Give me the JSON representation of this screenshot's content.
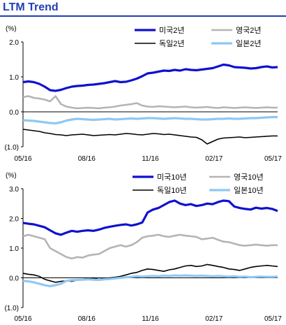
{
  "title": "LTM Trend",
  "chart_data": [
    {
      "type": "line",
      "unit_label": "(%)",
      "ylim": [
        -1.0,
        2.0
      ],
      "yticks": [
        "2.0",
        "1.0",
        "0.0",
        "(1.0)"
      ],
      "ytick_values": [
        2.0,
        1.0,
        0.0,
        -1.0
      ],
      "xticks": [
        "05/16",
        "08/16",
        "11/16",
        "02/17",
        "05/17"
      ],
      "x_range": [
        "2016-05",
        "2017-05"
      ],
      "grid": false,
      "legend": "top-right",
      "series": [
        {
          "name": "미국2년",
          "color": "#1010d0",
          "width": 3.2,
          "values": [
            0.85,
            0.87,
            0.85,
            0.8,
            0.72,
            0.62,
            0.6,
            0.63,
            0.68,
            0.72,
            0.74,
            0.75,
            0.77,
            0.78,
            0.8,
            0.82,
            0.85,
            0.88,
            0.85,
            0.86,
            0.9,
            0.95,
            1.02,
            1.1,
            1.12,
            1.15,
            1.18,
            1.17,
            1.2,
            1.18,
            1.22,
            1.2,
            1.19,
            1.21,
            1.23,
            1.25,
            1.3,
            1.35,
            1.33,
            1.28,
            1.27,
            1.26,
            1.24,
            1.25,
            1.28,
            1.3,
            1.27,
            1.28
          ]
        },
        {
          "name": "영국2년",
          "color": "#b4b4b4",
          "width": 2.6,
          "values": [
            0.42,
            0.45,
            0.4,
            0.38,
            0.35,
            0.3,
            0.45,
            0.22,
            0.15,
            0.12,
            0.1,
            0.11,
            0.12,
            0.11,
            0.1,
            0.12,
            0.13,
            0.15,
            0.18,
            0.2,
            0.22,
            0.25,
            0.18,
            0.15,
            0.14,
            0.16,
            0.15,
            0.14,
            0.13,
            0.14,
            0.15,
            0.13,
            0.12,
            0.13,
            0.14,
            0.12,
            0.11,
            0.13,
            0.12,
            0.11,
            0.12,
            0.13,
            0.12,
            0.11,
            0.12,
            0.13,
            0.12,
            0.12
          ]
        },
        {
          "name": "독일2년",
          "color": "#000000",
          "width": 1.6,
          "values": [
            -0.5,
            -0.52,
            -0.54,
            -0.56,
            -0.6,
            -0.62,
            -0.65,
            -0.66,
            -0.68,
            -0.66,
            -0.65,
            -0.64,
            -0.66,
            -0.68,
            -0.67,
            -0.66,
            -0.65,
            -0.66,
            -0.64,
            -0.62,
            -0.63,
            -0.65,
            -0.66,
            -0.64,
            -0.62,
            -0.63,
            -0.65,
            -0.64,
            -0.66,
            -0.68,
            -0.7,
            -0.72,
            -0.73,
            -0.8,
            -0.92,
            -0.85,
            -0.78,
            -0.75,
            -0.74,
            -0.73,
            -0.72,
            -0.74,
            -0.73,
            -0.72,
            -0.71,
            -0.7,
            -0.69,
            -0.69
          ]
        },
        {
          "name": "일본2년",
          "color": "#8ec8f4",
          "width": 3.2,
          "values": [
            -0.24,
            -0.25,
            -0.26,
            -0.28,
            -0.3,
            -0.32,
            -0.33,
            -0.3,
            -0.25,
            -0.22,
            -0.2,
            -0.21,
            -0.22,
            -0.23,
            -0.22,
            -0.21,
            -0.2,
            -0.22,
            -0.21,
            -0.2,
            -0.19,
            -0.2,
            -0.19,
            -0.18,
            -0.18,
            -0.19,
            -0.2,
            -0.19,
            -0.18,
            -0.19,
            -0.2,
            -0.2,
            -0.21,
            -0.22,
            -0.22,
            -0.21,
            -0.2,
            -0.2,
            -0.19,
            -0.2,
            -0.2,
            -0.19,
            -0.18,
            -0.18,
            -0.17,
            -0.16,
            -0.15,
            -0.15
          ]
        }
      ]
    },
    {
      "type": "line",
      "unit_label": "(%)",
      "ylim": [
        -1.0,
        3.0
      ],
      "yticks": [
        "3.0",
        "2.0",
        "1.0",
        "0.0",
        "(1.0)"
      ],
      "ytick_values": [
        3.0,
        2.0,
        1.0,
        0.0,
        -1.0
      ],
      "xticks": [
        "05/16",
        "08/16",
        "11/16",
        "02/17",
        "05/17"
      ],
      "x_range": [
        "2016-05",
        "2017-05"
      ],
      "grid": false,
      "legend": "top-right",
      "series": [
        {
          "name": "미국10년",
          "color": "#1010d0",
          "width": 3.2,
          "values": [
            1.85,
            1.82,
            1.8,
            1.75,
            1.7,
            1.6,
            1.5,
            1.45,
            1.52,
            1.58,
            1.55,
            1.58,
            1.6,
            1.58,
            1.62,
            1.68,
            1.72,
            1.75,
            1.78,
            1.8,
            1.76,
            1.8,
            1.86,
            2.2,
            2.3,
            2.35,
            2.45,
            2.55,
            2.6,
            2.5,
            2.45,
            2.48,
            2.42,
            2.45,
            2.5,
            2.48,
            2.55,
            2.6,
            2.58,
            2.4,
            2.35,
            2.32,
            2.3,
            2.36,
            2.33,
            2.35,
            2.32,
            2.25
          ]
        },
        {
          "name": "영국10년",
          "color": "#b4b4b4",
          "width": 2.6,
          "values": [
            1.4,
            1.45,
            1.4,
            1.35,
            1.3,
            1.0,
            0.9,
            0.8,
            0.7,
            0.65,
            0.7,
            0.68,
            0.75,
            0.78,
            0.8,
            0.9,
            1.0,
            1.05,
            1.1,
            1.05,
            1.1,
            1.2,
            1.35,
            1.4,
            1.42,
            1.45,
            1.4,
            1.38,
            1.42,
            1.45,
            1.42,
            1.4,
            1.38,
            1.3,
            1.32,
            1.35,
            1.28,
            1.22,
            1.2,
            1.15,
            1.1,
            1.08,
            1.1,
            1.12,
            1.1,
            1.08,
            1.1,
            1.1
          ]
        },
        {
          "name": "독일10년",
          "color": "#000000",
          "width": 1.6,
          "values": [
            0.15,
            0.12,
            0.1,
            0.05,
            -0.05,
            -0.1,
            -0.15,
            -0.12,
            -0.1,
            -0.12,
            -0.08,
            -0.05,
            -0.02,
            0.0,
            -0.05,
            -0.02,
            0.0,
            0.02,
            0.05,
            0.1,
            0.15,
            0.18,
            0.25,
            0.3,
            0.28,
            0.25,
            0.22,
            0.27,
            0.3,
            0.35,
            0.4,
            0.42,
            0.38,
            0.4,
            0.45,
            0.42,
            0.38,
            0.35,
            0.3,
            0.28,
            0.25,
            0.3,
            0.35,
            0.38,
            0.4,
            0.42,
            0.4,
            0.38
          ]
        },
        {
          "name": "일본10년",
          "color": "#8ec8f4",
          "width": 3.2,
          "values": [
            -0.1,
            -0.12,
            -0.15,
            -0.2,
            -0.25,
            -0.28,
            -0.25,
            -0.2,
            -0.1,
            -0.08,
            -0.07,
            -0.06,
            -0.05,
            -0.06,
            -0.07,
            -0.05,
            -0.04,
            -0.02,
            0.0,
            0.02,
            0.03,
            0.05,
            0.04,
            0.05,
            0.06,
            0.05,
            0.07,
            0.06,
            0.08,
            0.07,
            0.08,
            0.07,
            0.06,
            0.07,
            0.06,
            0.05,
            0.06,
            0.05,
            0.04,
            0.05,
            0.03,
            0.04,
            0.02,
            0.03,
            0.04,
            0.03,
            0.03,
            0.04
          ]
        }
      ]
    }
  ]
}
